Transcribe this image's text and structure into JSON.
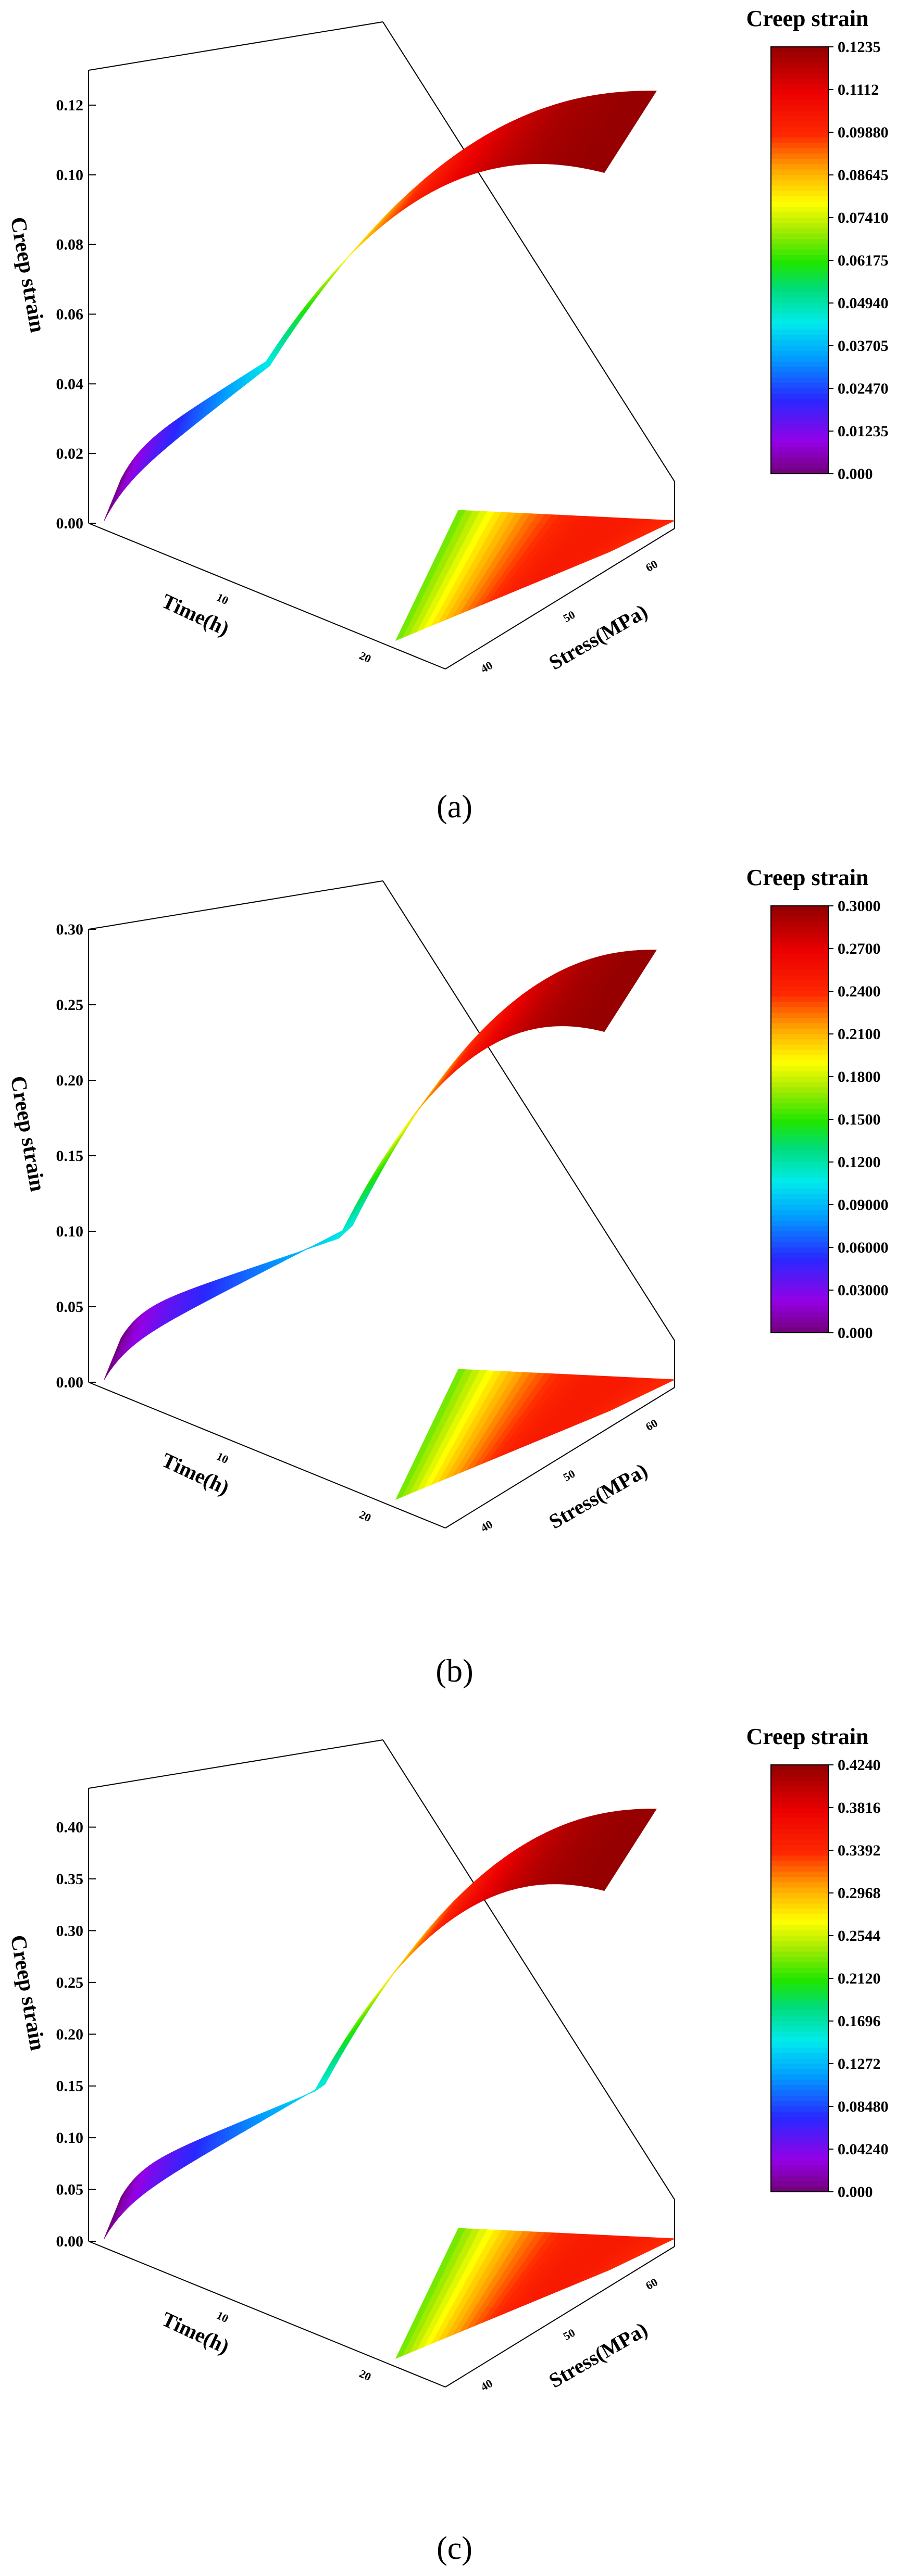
{
  "chart_data": [
    {
      "type": "surface",
      "panel": "(a)",
      "zlabel": "Creep strain",
      "xlabel": "Time(h)",
      "ylabel": "Stress(MPa)",
      "z_ticks": [
        "0.00",
        "0.02",
        "0.04",
        "0.06",
        "0.08",
        "0.10",
        "0.12"
      ],
      "z_range": [
        0,
        0.13
      ],
      "x_ticks": [
        "10",
        "20"
      ],
      "y_ticks": [
        "40",
        "50",
        "60"
      ],
      "colorbar_title": "Creep strain",
      "colorbar_ticks": [
        "0.1235",
        "0.1112",
        "0.09880",
        "0.08645",
        "0.07410",
        "0.06175",
        "0.04940",
        "0.03705",
        "0.02470",
        "0.01235",
        "0.000"
      ],
      "max_strain": 0.1235,
      "knee": 0.3
    },
    {
      "type": "surface",
      "panel": "(b)",
      "zlabel": "Creep strain",
      "xlabel": "Time(h)",
      "ylabel": "Stress(MPa)",
      "z_ticks": [
        "0.00",
        "0.05",
        "0.10",
        "0.15",
        "0.20",
        "0.25",
        "0.30"
      ],
      "z_range": [
        0,
        0.3
      ],
      "x_ticks": [
        "10",
        "20"
      ],
      "y_ticks": [
        "40",
        "50",
        "60"
      ],
      "colorbar_title": "Creep strain",
      "colorbar_ticks": [
        "0.3000",
        "0.2700",
        "0.2400",
        "0.2100",
        "0.1800",
        "0.1500",
        "0.1200",
        "0.09000",
        "0.06000",
        "0.03000",
        "0.000"
      ],
      "max_strain": 0.3,
      "knee": 0.45
    },
    {
      "type": "surface",
      "panel": "(c)",
      "zlabel": "Creep strain",
      "xlabel": "Time(h)",
      "ylabel": "Stress(MPa)",
      "z_ticks": [
        "0.00",
        "0.05",
        "0.10",
        "0.15",
        "0.20",
        "0.25",
        "0.30",
        "0.35",
        "0.40"
      ],
      "z_range": [
        0,
        0.4375
      ],
      "x_ticks": [
        "10",
        "20"
      ],
      "y_ticks": [
        "40",
        "50",
        "60"
      ],
      "colorbar_title": "Creep strain",
      "colorbar_ticks": [
        "0.4240",
        "0.3816",
        "0.3392",
        "0.2968",
        "0.2544",
        "0.2120",
        "0.1696",
        "0.1272",
        "0.08480",
        "0.04240",
        "0.000"
      ],
      "max_strain": 0.424,
      "knee": 0.4
    }
  ]
}
